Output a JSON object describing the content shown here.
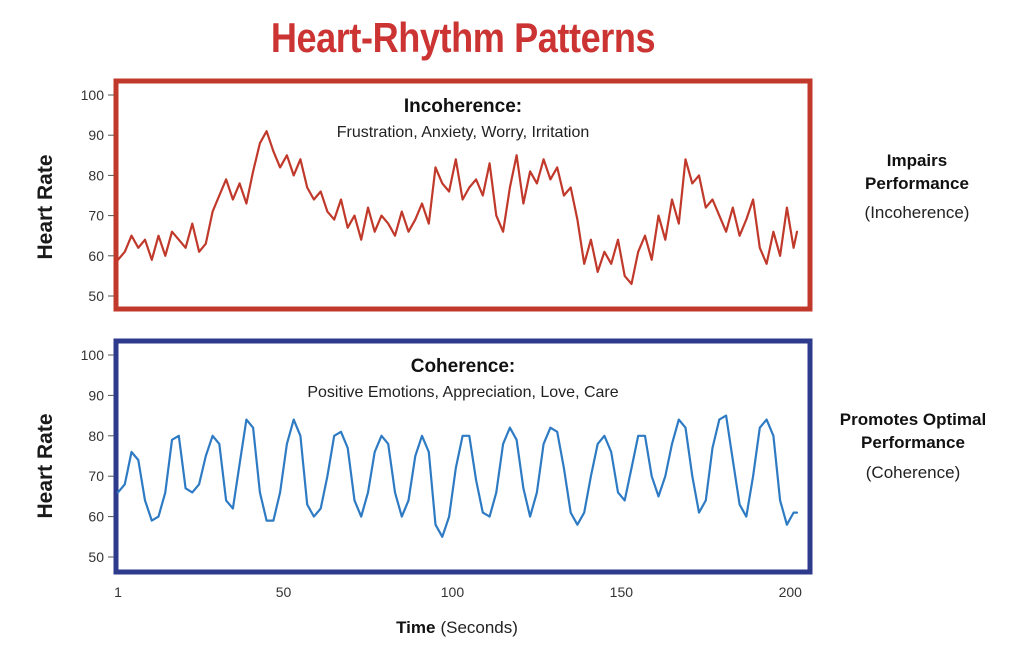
{
  "title": "Heart-Rhythm Patterns",
  "x_axis": {
    "label_bold": "Time",
    "label_rest": "(Seconds)",
    "ticks": [
      1,
      50,
      100,
      150,
      200
    ],
    "range": [
      1,
      202
    ]
  },
  "chart_data": [
    {
      "type": "line",
      "title": "Incoherence:",
      "subtitle": "Frustration, Anxiety, Worry, Irritation",
      "ylabel": "Heart Rate",
      "ylim": [
        45,
        104
      ],
      "yticks": [
        50,
        60,
        70,
        80,
        90,
        100
      ],
      "side_label_bold": [
        "Impairs",
        "Performance"
      ],
      "side_label_note": "(Incoherence)",
      "frame_color": "#c0392b",
      "line_color": "#c0392b",
      "series": [
        {
          "x": [
            1,
            3,
            5,
            7,
            9,
            11,
            13,
            15,
            17,
            19,
            21,
            23,
            25,
            27,
            29,
            31,
            33,
            35,
            37,
            39,
            41,
            43,
            45,
            47,
            49,
            51,
            53,
            55,
            57,
            59,
            61,
            63,
            65,
            67,
            69,
            71,
            73,
            75,
            77,
            79,
            81,
            83,
            85,
            87,
            89,
            91,
            93,
            95,
            97,
            99,
            101,
            103,
            105,
            107,
            109,
            111,
            113,
            115,
            117,
            119,
            121,
            123,
            125,
            127,
            129,
            131,
            133,
            135,
            137,
            139,
            141,
            143,
            145,
            147,
            149,
            151,
            153,
            155,
            157,
            159,
            161,
            163,
            165,
            167,
            169,
            171,
            173,
            175,
            177,
            179,
            181,
            183,
            185,
            187,
            189,
            191,
            193,
            195,
            197,
            199,
            201,
            202
          ],
          "y": [
            59,
            61,
            65,
            62,
            64,
            59,
            65,
            60,
            66,
            64,
            62,
            68,
            61,
            63,
            71,
            75,
            79,
            74,
            78,
            73,
            81,
            88,
            91,
            86,
            82,
            85,
            80,
            84,
            77,
            74,
            76,
            71,
            69,
            74,
            67,
            70,
            64,
            72,
            66,
            70,
            68,
            65,
            71,
            66,
            69,
            73,
            68,
            82,
            78,
            76,
            84,
            74,
            77,
            79,
            75,
            83,
            70,
            66,
            77,
            85,
            73,
            81,
            78,
            84,
            79,
            82,
            75,
            77,
            69,
            58,
            64,
            56,
            61,
            58,
            64,
            55,
            53,
            61,
            65,
            59,
            70,
            64,
            74,
            68,
            84,
            78,
            80,
            72,
            74,
            70,
            66,
            72,
            65,
            69,
            74,
            62,
            58,
            66,
            60,
            72,
            62,
            66
          ]
        }
      ]
    },
    {
      "type": "line",
      "title": "Coherence:",
      "subtitle": "Positive Emotions, Appreciation, Love, Care",
      "ylabel": "Heart Rate",
      "ylim": [
        45,
        104
      ],
      "yticks": [
        50,
        60,
        70,
        80,
        90,
        100
      ],
      "side_label_bold": [
        "Promotes Optimal",
        "Performance"
      ],
      "side_label_note": "(Coherence)",
      "frame_color": "#2e3a8c",
      "line_color": "#2e7bc4",
      "series": [
        {
          "x": [
            1,
            3,
            5,
            7,
            9,
            11,
            13,
            15,
            17,
            19,
            21,
            23,
            25,
            27,
            29,
            31,
            33,
            35,
            37,
            39,
            41,
            43,
            45,
            47,
            49,
            51,
            53,
            55,
            57,
            59,
            61,
            63,
            65,
            67,
            69,
            71,
            73,
            75,
            77,
            79,
            81,
            83,
            85,
            87,
            89,
            91,
            93,
            95,
            97,
            99,
            101,
            103,
            105,
            107,
            109,
            111,
            113,
            115,
            117,
            119,
            121,
            123,
            125,
            127,
            129,
            131,
            133,
            135,
            137,
            139,
            141,
            143,
            145,
            147,
            149,
            151,
            153,
            155,
            157,
            159,
            161,
            163,
            165,
            167,
            169,
            171,
            173,
            175,
            177,
            179,
            181,
            183,
            185,
            187,
            189,
            191,
            193,
            195,
            197,
            199,
            201,
            202
          ],
          "y": [
            66,
            68,
            76,
            74,
            64,
            59,
            60,
            66,
            79,
            80,
            67,
            66,
            68,
            75,
            80,
            78,
            64,
            62,
            73,
            84,
            82,
            66,
            59,
            59,
            66,
            78,
            84,
            80,
            63,
            60,
            62,
            70,
            80,
            81,
            77,
            64,
            60,
            66,
            76,
            80,
            78,
            66,
            60,
            64,
            75,
            80,
            76,
            58,
            55,
            60,
            72,
            80,
            80,
            69,
            61,
            60,
            66,
            78,
            82,
            79,
            67,
            60,
            66,
            78,
            82,
            81,
            72,
            61,
            58,
            61,
            70,
            78,
            80,
            76,
            66,
            64,
            72,
            80,
            80,
            70,
            65,
            70,
            78,
            84,
            82,
            70,
            61,
            64,
            77,
            84,
            85,
            74,
            63,
            60,
            70,
            82,
            84,
            80,
            64,
            58,
            61,
            61
          ]
        }
      ]
    }
  ]
}
